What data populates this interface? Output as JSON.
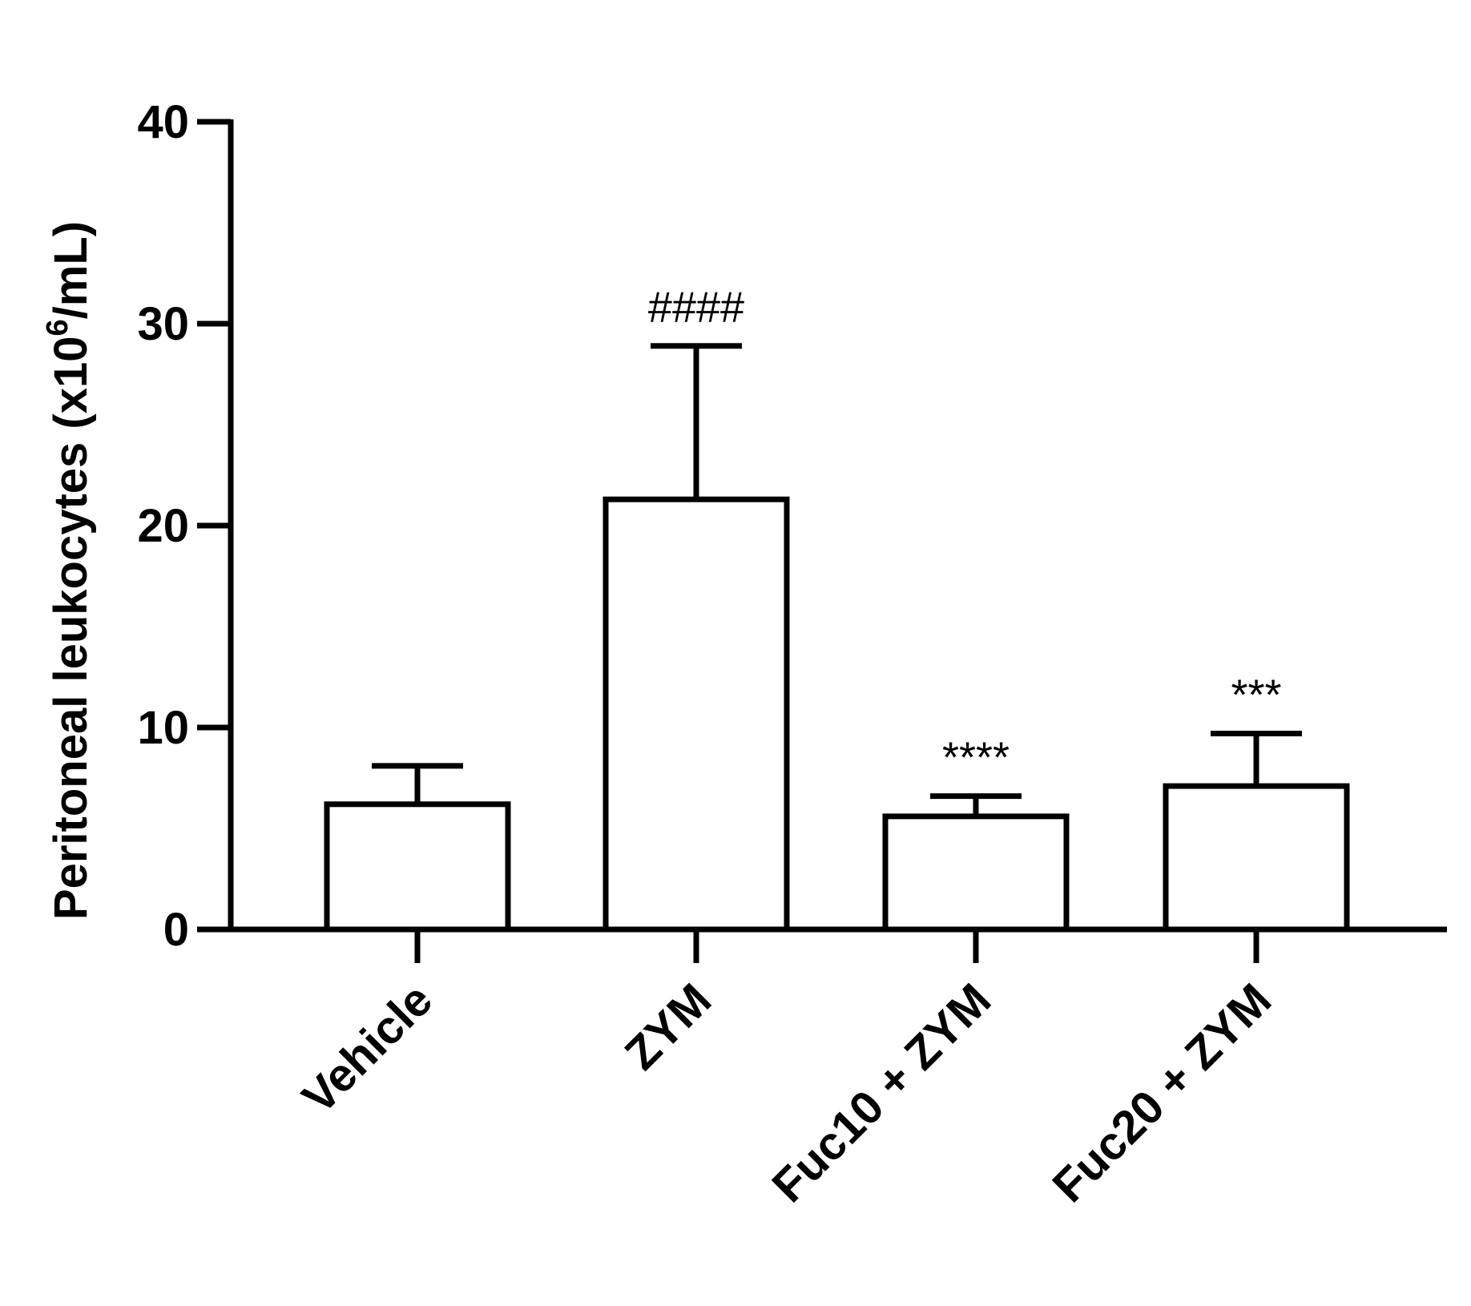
{
  "chart_data": {
    "type": "bar",
    "title": "",
    "xlabel": "",
    "ylabel": {
      "prefix": "Peritoneal leukocytes (x10",
      "superscript": "6",
      "suffix": "/mL)"
    },
    "ylim": [
      0,
      40
    ],
    "yticks": [
      "0",
      "10",
      "20",
      "30",
      "40"
    ],
    "categories": [
      "Vehicle",
      "ZYM",
      "Fuc10 + ZYM",
      "Fuc20 + ZYM"
    ],
    "values": [
      6.2,
      21.3,
      5.6,
      7.1
    ],
    "error_upper": [
      8.1,
      28.9,
      6.6,
      9.7
    ],
    "annotations": [
      "",
      "####",
      "****",
      "***"
    ],
    "colors": {
      "bar_fill": "#ffffff",
      "stroke": "#000000"
    }
  }
}
